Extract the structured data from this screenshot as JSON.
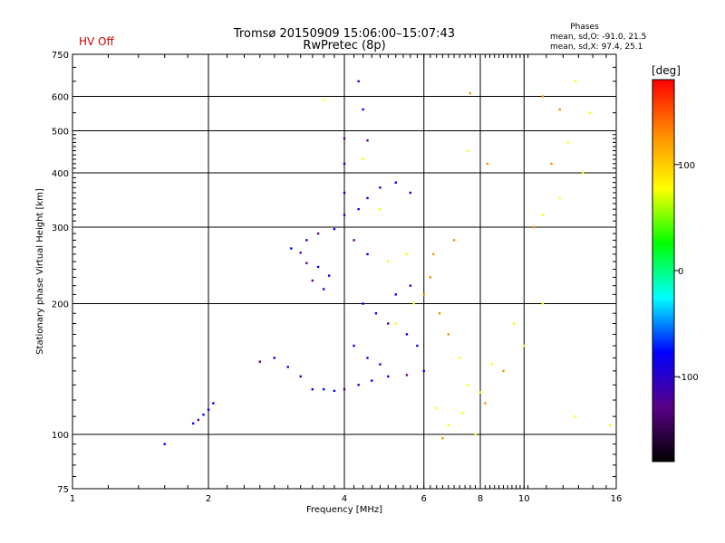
{
  "header": {
    "title_line1": "Tromsø 20150909 15:06:00–15:07:43",
    "title_line2": "RwPretec (8p)",
    "hv_status": "HV Off",
    "phase_title": "Phases",
    "phase_line1": "mean, sd,O: -91.0, 21.5",
    "phase_line2": "mean, sd,X:  97.4, 25.1",
    "hv_color": "#cc0000"
  },
  "chart_data": {
    "type": "scatter",
    "xlabel": "Frequency [MHz]",
    "ylabel": "Stationary phase Virtual Height [km]",
    "xscale": "log",
    "yscale": "log",
    "xlim": [
      1,
      16
    ],
    "ylim": [
      75,
      750
    ],
    "xticks": [
      1,
      2,
      4,
      6,
      8,
      10,
      16
    ],
    "xtick_labels": [
      "1",
      "2",
      "4",
      "6",
      "8",
      "10",
      "16"
    ],
    "yticks": [
      75,
      100,
      200,
      300,
      400,
      500,
      600,
      750
    ],
    "ytick_labels": [
      "75",
      "100",
      "200",
      "300",
      "400",
      "500",
      "600",
      "750"
    ],
    "colorbar": {
      "label": "[deg]",
      "range": [
        -180,
        180
      ],
      "ticks": [
        -100,
        0,
        100
      ],
      "tick_labels": [
        "-100",
        "0",
        "100"
      ],
      "colors": [
        "#000000",
        "#5a0088",
        "#0000ff",
        "#00ffff",
        "#00ff00",
        "#ffff00",
        "#ff8c00",
        "#ff0000"
      ]
    },
    "series": [
      {
        "name": "O",
        "mean_phase": -91.0,
        "sd": 21.5,
        "points": [
          [
            1.6,
            95
          ],
          [
            1.85,
            106
          ],
          [
            1.9,
            108
          ],
          [
            1.95,
            111
          ],
          [
            2.0,
            114
          ],
          [
            2.05,
            118
          ],
          [
            2.6,
            147
          ],
          [
            2.8,
            150
          ],
          [
            3.0,
            143
          ],
          [
            3.2,
            136
          ],
          [
            3.4,
            127
          ],
          [
            3.6,
            127
          ],
          [
            3.8,
            126
          ],
          [
            4.0,
            127
          ],
          [
            4.3,
            130
          ],
          [
            4.6,
            133
          ],
          [
            5.0,
            136
          ],
          [
            5.5,
            137
          ],
          [
            6.0,
            140
          ],
          [
            3.05,
            268
          ],
          [
            3.2,
            262
          ],
          [
            3.3,
            248
          ],
          [
            3.5,
            243
          ],
          [
            3.7,
            232
          ],
          [
            3.4,
            226
          ],
          [
            3.6,
            216
          ],
          [
            3.3,
            280
          ],
          [
            3.5,
            290
          ],
          [
            3.8,
            297
          ],
          [
            4.0,
            320
          ],
          [
            4.0,
            360
          ],
          [
            4.0,
            420
          ],
          [
            4.0,
            480
          ],
          [
            4.3,
            330
          ],
          [
            4.5,
            350
          ],
          [
            4.8,
            370
          ],
          [
            5.2,
            380
          ],
          [
            5.6,
            360
          ],
          [
            4.2,
            280
          ],
          [
            4.5,
            260
          ],
          [
            4.4,
            200
          ],
          [
            4.7,
            190
          ],
          [
            5.0,
            180
          ],
          [
            5.5,
            170
          ],
          [
            5.8,
            160
          ],
          [
            4.2,
            160
          ],
          [
            4.5,
            150
          ],
          [
            4.8,
            145
          ],
          [
            5.2,
            210
          ],
          [
            5.6,
            220
          ],
          [
            4.3,
            650
          ],
          [
            4.4,
            560
          ],
          [
            4.5,
            475
          ]
        ]
      },
      {
        "name": "X",
        "mean_phase": 97.4,
        "sd": 25.1,
        "points": [
          [
            3.6,
            590
          ],
          [
            4.4,
            430
          ],
          [
            4.8,
            330
          ],
          [
            5.0,
            250
          ],
          [
            5.5,
            260
          ],
          [
            6.2,
            230
          ],
          [
            6.5,
            190
          ],
          [
            6.8,
            170
          ],
          [
            7.2,
            150
          ],
          [
            7.5,
            130
          ],
          [
            8.0,
            125
          ],
          [
            8.5,
            145
          ],
          [
            9.0,
            140
          ],
          [
            6.4,
            115
          ],
          [
            6.8,
            105
          ],
          [
            7.3,
            112
          ],
          [
            7.8,
            100
          ],
          [
            8.2,
            118
          ],
          [
            5.2,
            180
          ],
          [
            5.7,
            200
          ],
          [
            6.0,
            210
          ],
          [
            6.3,
            260
          ],
          [
            7.0,
            280
          ],
          [
            7.6,
            610
          ],
          [
            8.3,
            420
          ],
          [
            11,
            600
          ],
          [
            12,
            560
          ],
          [
            13,
            650
          ],
          [
            14,
            550
          ],
          [
            12.5,
            470
          ],
          [
            13.5,
            400
          ],
          [
            12,
            350
          ],
          [
            11,
            320
          ],
          [
            10.5,
            300
          ],
          [
            11.5,
            420
          ],
          [
            7.5,
            450
          ],
          [
            6.6,
            98
          ],
          [
            15.5,
            105
          ],
          [
            13,
            110
          ],
          [
            11,
            200
          ],
          [
            9.5,
            180
          ],
          [
            10,
            160
          ]
        ]
      }
    ]
  }
}
